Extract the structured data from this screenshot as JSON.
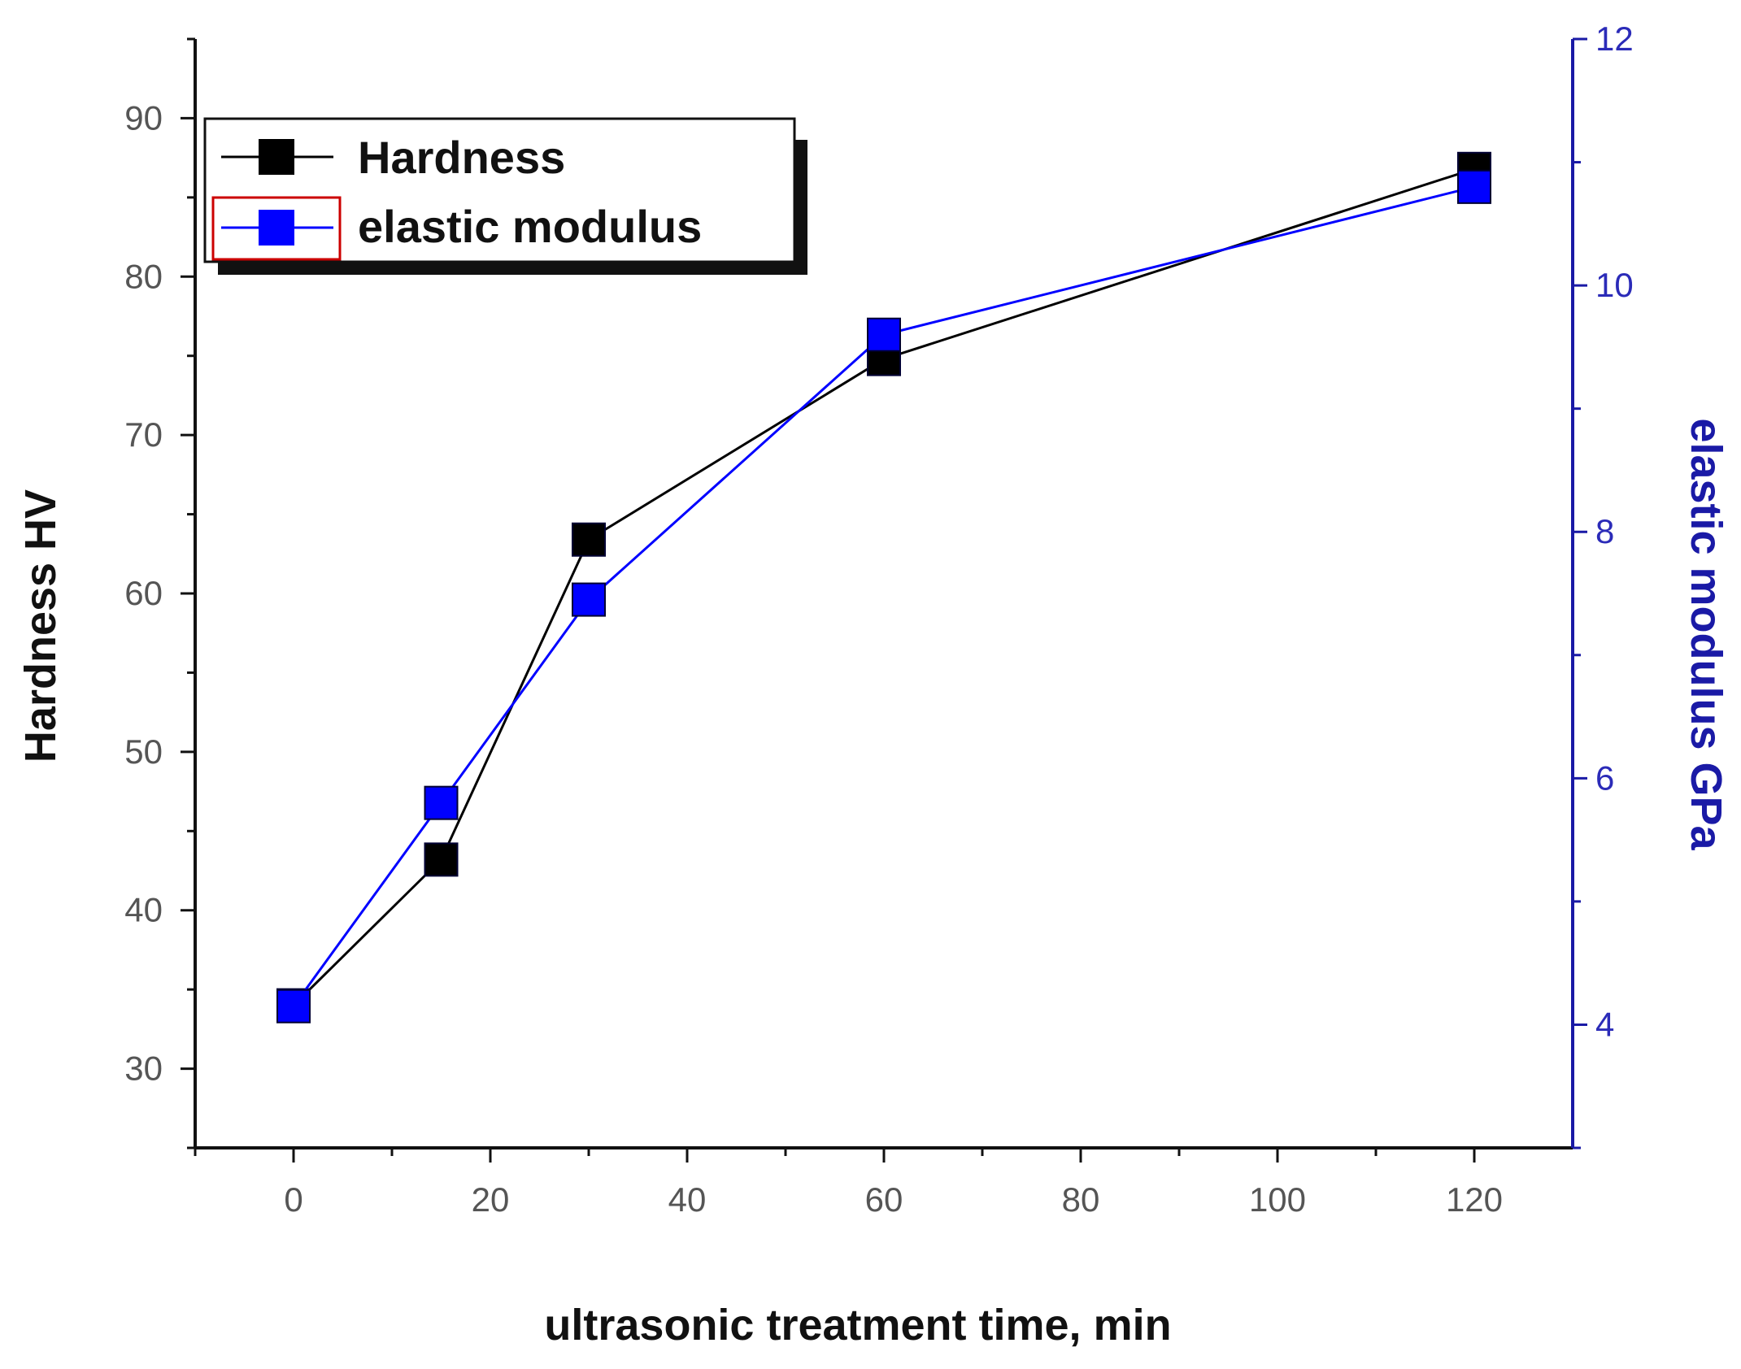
{
  "chart_data": {
    "type": "line",
    "x": [
      0,
      15,
      30,
      60,
      120
    ],
    "xlabel": "ultrasonic treatment time, min",
    "ylabel": "Hardness HV",
    "y2label": "elastic modulus GPa",
    "xlim": [
      -10,
      130
    ],
    "ylim": [
      25,
      95
    ],
    "y2lim": [
      3,
      12
    ],
    "xticks": [
      0,
      20,
      40,
      60,
      80,
      100,
      120
    ],
    "yticks": [
      30,
      40,
      50,
      60,
      70,
      80,
      90
    ],
    "y2ticks": [
      4,
      6,
      8,
      10,
      12
    ],
    "series": [
      {
        "name": "Hardness",
        "axis": "left",
        "color": "#000000",
        "marker": "square",
        "values": [
          34.0,
          43.2,
          63.4,
          74.8,
          86.8
        ]
      },
      {
        "name": "elastic modulus",
        "axis": "right",
        "color": "#0000ff",
        "marker": "square",
        "values": [
          4.15,
          5.8,
          7.45,
          9.6,
          10.8
        ]
      }
    ],
    "legend": {
      "placement": "top-left",
      "swatch_border_color": "#cc0000"
    },
    "grid": false,
    "right_axis_color": "#1a1aa6"
  }
}
